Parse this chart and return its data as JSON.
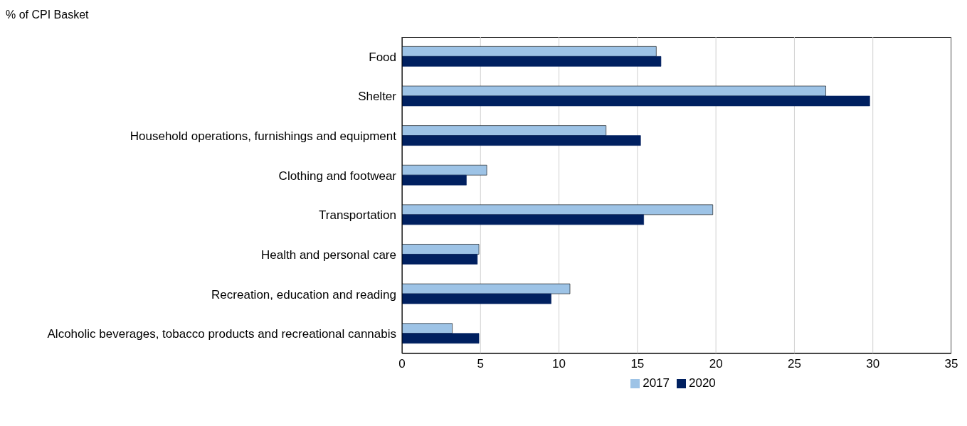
{
  "chart_data": {
    "type": "bar",
    "orientation": "horizontal",
    "xlabel": "% of CPI Basket",
    "categories": [
      "Food",
      "Shelter",
      "Household operations, furnishings and equipment",
      "Clothing and footwear",
      "Transportation",
      "Health and personal care",
      "Recreation, education and reading",
      "Alcoholic beverages, tobacco products and recreational cannabis"
    ],
    "series": [
      {
        "name": "2017",
        "color": "#9dc3e6",
        "values": [
          16.2,
          27.0,
          13.0,
          5.4,
          19.8,
          4.9,
          10.7,
          3.2
        ]
      },
      {
        "name": "2020",
        "color": "#002060",
        "values": [
          16.5,
          29.8,
          15.2,
          4.1,
          15.4,
          4.8,
          9.5,
          4.9
        ]
      }
    ],
    "xlim": [
      0,
      35
    ],
    "xticks": [
      0,
      5,
      10,
      15,
      20,
      25,
      30,
      35
    ],
    "grid": "x",
    "legend": "bottom"
  }
}
